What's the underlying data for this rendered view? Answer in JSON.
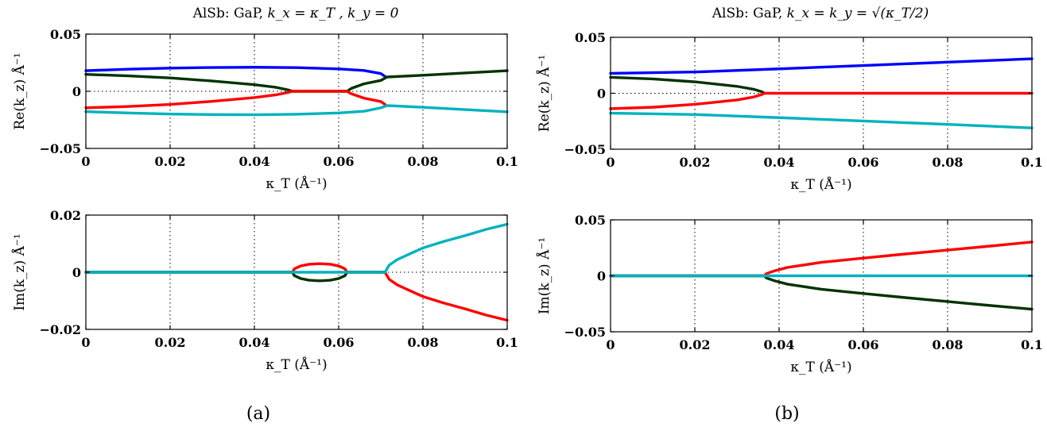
{
  "panels": {
    "a": {
      "title_prefix": "AlSb: GaP, ",
      "title_math": "k_x = κ_T , k_y = 0",
      "caption": "(a)"
    },
    "b": {
      "title_prefix": "AlSb: GaP, ",
      "title_math": "k_x = k_y = √(κ_T/2)",
      "caption": "(b)"
    }
  },
  "colors": {
    "blue": "#0000ff",
    "dark_green": "#003300",
    "red": "#ff0000",
    "cyan": "#00b2bf"
  },
  "chart_data": [
    {
      "id": "a-re",
      "type": "line",
      "title": "AlSb: GaP, k_x = κ_T, k_y = 0",
      "xlabel": "κ_T (Å⁻¹)",
      "ylabel": "Re(k_z) Å⁻¹",
      "xlim": [
        0,
        0.1
      ],
      "ylim": [
        -0.05,
        0.05
      ],
      "xticks": [
        0,
        0.02,
        0.04,
        0.06,
        0.08,
        0.1
      ],
      "xtick_labels": [
        "0",
        "0.02",
        "0.04",
        "0.06",
        "0.08",
        "0.1"
      ],
      "yticks": [
        -0.05,
        0,
        0.05
      ],
      "ytick_labels": [
        "−0.05",
        "0",
        "0.05"
      ],
      "grid": true,
      "series": [
        {
          "name": "blue",
          "color": "blue",
          "points": [
            [
              0,
              0.018
            ],
            [
              0.01,
              0.0193
            ],
            [
              0.02,
              0.0203
            ],
            [
              0.03,
              0.0208
            ],
            [
              0.04,
              0.021
            ],
            [
              0.05,
              0.0207
            ],
            [
              0.06,
              0.0196
            ],
            [
              0.066,
              0.0182
            ],
            [
              0.07,
              0.0155
            ],
            [
              0.071,
              0.013
            ]
          ]
        },
        {
          "name": "dark-green",
          "color": "dark_green",
          "points": [
            [
              0,
              0.0148
            ],
            [
              0.01,
              0.0135
            ],
            [
              0.02,
              0.0117
            ],
            [
              0.03,
              0.009
            ],
            [
              0.04,
              0.0058
            ],
            [
              0.045,
              0.0035
            ],
            [
              0.048,
              0.0012
            ],
            [
              0.049,
              0.0
            ],
            [
              0.062,
              0.0
            ],
            [
              0.063,
              0.0025
            ],
            [
              0.066,
              0.0065
            ],
            [
              0.07,
              0.0095
            ],
            [
              0.0715,
              0.0125
            ],
            [
              0.08,
              0.014
            ],
            [
              0.09,
              0.016
            ],
            [
              0.1,
              0.018
            ]
          ]
        },
        {
          "name": "red",
          "color": "red",
          "points": [
            [
              0,
              -0.0145
            ],
            [
              0.01,
              -0.0133
            ],
            [
              0.02,
              -0.0115
            ],
            [
              0.03,
              -0.0088
            ],
            [
              0.04,
              -0.0055
            ],
            [
              0.045,
              -0.0032
            ],
            [
              0.048,
              -0.001
            ],
            [
              0.049,
              0.0
            ],
            [
              0.062,
              0.0
            ],
            [
              0.063,
              -0.0022
            ],
            [
              0.066,
              -0.006
            ],
            [
              0.07,
              -0.009
            ],
            [
              0.071,
              -0.0115
            ]
          ]
        },
        {
          "name": "cyan",
          "color": "cyan",
          "points": [
            [
              0,
              -0.0178
            ],
            [
              0.01,
              -0.019
            ],
            [
              0.02,
              -0.0199
            ],
            [
              0.03,
              -0.0204
            ],
            [
              0.04,
              -0.0205
            ],
            [
              0.05,
              -0.0201
            ],
            [
              0.06,
              -0.019
            ],
            [
              0.066,
              -0.0175
            ],
            [
              0.07,
              -0.0145
            ],
            [
              0.0715,
              -0.0125
            ],
            [
              0.08,
              -0.014
            ],
            [
              0.09,
              -0.016
            ],
            [
              0.1,
              -0.018
            ]
          ]
        }
      ]
    },
    {
      "id": "a-im",
      "type": "line",
      "xlabel": "κ_T (Å⁻¹)",
      "ylabel": "Im(k_z) Å⁻¹",
      "xlim": [
        0,
        0.1
      ],
      "ylim": [
        -0.02,
        0.02
      ],
      "xticks": [
        0,
        0.02,
        0.04,
        0.06,
        0.08,
        0.1
      ],
      "xtick_labels": [
        "0",
        "0.02",
        "0.04",
        "0.06",
        "0.08",
        "0.1"
      ],
      "yticks": [
        -0.02,
        0,
        0.02
      ],
      "ytick_labels": [
        "−0.02",
        "0",
        "0.02"
      ],
      "grid": true,
      "series": [
        {
          "name": "red",
          "color": "red",
          "points": [
            [
              0,
              0
            ],
            [
              0.049,
              0
            ],
            [
              0.0495,
              0.0012
            ],
            [
              0.051,
              0.0022
            ],
            [
              0.053,
              0.0028
            ],
            [
              0.0555,
              0.003
            ],
            [
              0.058,
              0.0028
            ],
            [
              0.06,
              0.0022
            ],
            [
              0.0615,
              0.0012
            ],
            [
              0.062,
              0
            ],
            [
              0.071,
              0
            ],
            [
              0.072,
              -0.0025
            ],
            [
              0.074,
              -0.0045
            ],
            [
              0.077,
              -0.0065
            ],
            [
              0.08,
              -0.0085
            ],
            [
              0.085,
              -0.0108
            ],
            [
              0.09,
              -0.0128
            ],
            [
              0.095,
              -0.015
            ],
            [
              0.1,
              -0.0168
            ]
          ]
        },
        {
          "name": "dark-green",
          "color": "dark_green",
          "points": [
            [
              0,
              0
            ],
            [
              0.049,
              0
            ],
            [
              0.0495,
              -0.0012
            ],
            [
              0.051,
              -0.0022
            ],
            [
              0.053,
              -0.0028
            ],
            [
              0.0555,
              -0.003
            ],
            [
              0.058,
              -0.0028
            ],
            [
              0.06,
              -0.0022
            ],
            [
              0.0615,
              -0.0012
            ],
            [
              0.062,
              0
            ],
            [
              0.071,
              0
            ]
          ]
        },
        {
          "name": "cyan",
          "color": "cyan",
          "points": [
            [
              0,
              0
            ],
            [
              0.071,
              0
            ],
            [
              0.072,
              0.0025
            ],
            [
              0.074,
              0.0045
            ],
            [
              0.077,
              0.0065
            ],
            [
              0.08,
              0.0085
            ],
            [
              0.085,
              0.0108
            ],
            [
              0.09,
              0.0128
            ],
            [
              0.095,
              0.015
            ],
            [
              0.1,
              0.0168
            ]
          ]
        }
      ]
    },
    {
      "id": "b-re",
      "type": "line",
      "title": "AlSb: GaP, k_x = k_y = √(κ_T/2)",
      "xlabel": "κ_T (Å⁻¹)",
      "ylabel": "Re(k_z) Å⁻¹",
      "xlim": [
        0,
        0.1
      ],
      "ylim": [
        -0.05,
        0.05
      ],
      "xticks": [
        0,
        0.02,
        0.04,
        0.06,
        0.08,
        0.1
      ],
      "xtick_labels": [
        "0",
        "0.02",
        "0.04",
        "0.06",
        "0.08",
        "0.1"
      ],
      "yticks": [
        -0.05,
        0,
        0.05
      ],
      "ytick_labels": [
        "−0.05",
        "0",
        "0.05"
      ],
      "grid": true,
      "series": [
        {
          "name": "blue",
          "color": "blue",
          "points": [
            [
              0,
              0.0178
            ],
            [
              0.02,
              0.019
            ],
            [
              0.04,
              0.0218
            ],
            [
              0.06,
              0.0248
            ],
            [
              0.08,
              0.0278
            ],
            [
              0.1,
              0.0308
            ]
          ]
        },
        {
          "name": "dark-green",
          "color": "dark_green",
          "points": [
            [
              0,
              0.0142
            ],
            [
              0.01,
              0.0128
            ],
            [
              0.02,
              0.0102
            ],
            [
              0.03,
              0.0062
            ],
            [
              0.034,
              0.0035
            ],
            [
              0.036,
              0.0012
            ],
            [
              0.0365,
              0.0
            ]
          ]
        },
        {
          "name": "red",
          "color": "red",
          "points": [
            [
              0,
              -0.0138
            ],
            [
              0.01,
              -0.0125
            ],
            [
              0.02,
              -0.0099
            ],
            [
              0.03,
              -0.006
            ],
            [
              0.034,
              -0.0033
            ],
            [
              0.036,
              -0.001
            ],
            [
              0.0365,
              0.0
            ],
            [
              0.1,
              0.0
            ]
          ]
        },
        {
          "name": "cyan",
          "color": "cyan",
          "points": [
            [
              0,
              -0.0178
            ],
            [
              0.02,
              -0.019
            ],
            [
              0.04,
              -0.0218
            ],
            [
              0.06,
              -0.0248
            ],
            [
              0.08,
              -0.0278
            ],
            [
              0.1,
              -0.031
            ]
          ]
        }
      ]
    },
    {
      "id": "b-im",
      "type": "line",
      "xlabel": "κ_T (Å⁻¹)",
      "ylabel": "Im(k_z) Å⁻¹",
      "xlim": [
        0,
        0.1
      ],
      "ylim": [
        -0.05,
        0.05
      ],
      "xticks": [
        0,
        0.02,
        0.04,
        0.06,
        0.08,
        0.1
      ],
      "xtick_labels": [
        "0",
        "0.02",
        "0.04",
        "0.06",
        "0.08",
        "0.1"
      ],
      "yticks": [
        -0.05,
        0,
        0.05
      ],
      "ytick_labels": [
        "−0.05",
        "0",
        "0.05"
      ],
      "grid": true,
      "series": [
        {
          "name": "red",
          "color": "red",
          "points": [
            [
              0,
              0
            ],
            [
              0.0365,
              0
            ],
            [
              0.037,
              0.002
            ],
            [
              0.039,
              0.0045
            ],
            [
              0.042,
              0.0075
            ],
            [
              0.05,
              0.012
            ],
            [
              0.06,
              0.0158
            ],
            [
              0.07,
              0.0195
            ],
            [
              0.08,
              0.023
            ],
            [
              0.09,
              0.0265
            ],
            [
              0.1,
              0.0302
            ]
          ]
        },
        {
          "name": "dark-green",
          "color": "dark_green",
          "points": [
            [
              0,
              0
            ],
            [
              0.0365,
              0
            ],
            [
              0.037,
              -0.002
            ],
            [
              0.039,
              -0.0045
            ],
            [
              0.042,
              -0.0075
            ],
            [
              0.05,
              -0.012
            ],
            [
              0.06,
              -0.0158
            ],
            [
              0.07,
              -0.0195
            ],
            [
              0.08,
              -0.023
            ],
            [
              0.09,
              -0.0265
            ],
            [
              0.1,
              -0.0298
            ]
          ]
        },
        {
          "name": "cyan",
          "color": "cyan",
          "points": [
            [
              0,
              0
            ],
            [
              0.1,
              0
            ]
          ]
        }
      ]
    }
  ]
}
